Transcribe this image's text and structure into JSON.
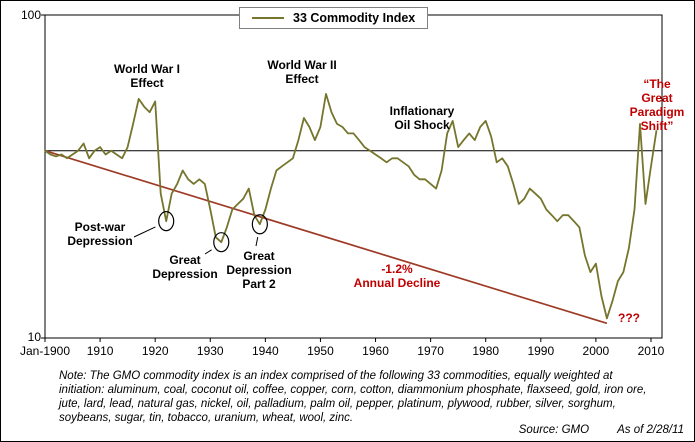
{
  "chart_data": {
    "type": "line",
    "title": "33 Commodity Index (GMO)",
    "x_axis": {
      "range": [
        1900,
        2012
      ],
      "ticks": [
        {
          "year": 1900,
          "label": "Jan-1900"
        },
        {
          "year": 1910,
          "label": "1910"
        },
        {
          "year": 1920,
          "label": "1920"
        },
        {
          "year": 1930,
          "label": "1930"
        },
        {
          "year": 1940,
          "label": "1940"
        },
        {
          "year": 1950,
          "label": "1950"
        },
        {
          "year": 1960,
          "label": "1960"
        },
        {
          "year": 1970,
          "label": "1970"
        },
        {
          "year": 1980,
          "label": "1980"
        },
        {
          "year": 1990,
          "label": "1990"
        },
        {
          "year": 2000,
          "label": "2000"
        },
        {
          "year": 2010,
          "label": "2010"
        }
      ]
    },
    "y_axis": {
      "scale": "log",
      "range": [
        10,
        100
      ],
      "ticks": [
        {
          "value": 100,
          "label": "100"
        },
        {
          "value": 10,
          "label": "10"
        }
      ]
    },
    "series": [
      {
        "name": "33 Commodity Index",
        "color": "#75752d",
        "x": [
          1900,
          1901,
          1902,
          1903,
          1904,
          1905,
          1906,
          1907,
          1908,
          1909,
          1910,
          1911,
          1912,
          1913,
          1914,
          1915,
          1916,
          1917,
          1918,
          1919,
          1920,
          1921,
          1922,
          1923,
          1924,
          1925,
          1926,
          1927,
          1928,
          1929,
          1930,
          1931,
          1932,
          1933,
          1934,
          1935,
          1936,
          1937,
          1938,
          1939,
          1940,
          1941,
          1942,
          1943,
          1944,
          1945,
          1946,
          1947,
          1948,
          1949,
          1950,
          1951,
          1952,
          1953,
          1954,
          1955,
          1956,
          1957,
          1958,
          1959,
          1960,
          1961,
          1962,
          1963,
          1964,
          1965,
          1966,
          1967,
          1968,
          1969,
          1970,
          1971,
          1972,
          1973,
          1974,
          1975,
          1976,
          1977,
          1978,
          1979,
          1980,
          1981,
          1982,
          1983,
          1984,
          1985,
          1986,
          1987,
          1988,
          1989,
          1990,
          1991,
          1992,
          1993,
          1994,
          1995,
          1996,
          1997,
          1998,
          1999,
          2000,
          2001,
          2002,
          2003,
          2004,
          2005,
          2006,
          2007,
          2008,
          2009,
          2010,
          2011
        ],
        "values": [
          38,
          37,
          36.5,
          37,
          36,
          37,
          38,
          40,
          36,
          38,
          39,
          37,
          38,
          37,
          36,
          39,
          46,
          55,
          52,
          50,
          54,
          28,
          23,
          28,
          30,
          33,
          31,
          30,
          31,
          30,
          25,
          20.5,
          19.8,
          22,
          25,
          26,
          27,
          29,
          24,
          22.5,
          25,
          29,
          33,
          34,
          35,
          36,
          41,
          48,
          45,
          41,
          45,
          57,
          50,
          46,
          45,
          43,
          43,
          41,
          39,
          38,
          37,
          36,
          35,
          36,
          36,
          35,
          34,
          32,
          31,
          31,
          30,
          29,
          33,
          43,
          47,
          39,
          41,
          43,
          41,
          45,
          47,
          42,
          35,
          36,
          34,
          30,
          26,
          27,
          29,
          28,
          27,
          25,
          24,
          23,
          24,
          24,
          23,
          22,
          18,
          16,
          17,
          13.5,
          11.5,
          13,
          15,
          16,
          19,
          25,
          46,
          26,
          34,
          44
        ]
      }
    ],
    "trend_line": {
      "from_year": 1900,
      "from_value": 38,
      "to_year": 2002,
      "to_value": 11.1,
      "annual_decline_pct": -1.2,
      "color": "#9e3b26"
    },
    "reference_line": {
      "value": 38,
      "color": "#000000"
    },
    "highlights": [
      {
        "year": 1922,
        "value": 23,
        "label": "Post-war Depression low"
      },
      {
        "year": 1932,
        "value": 19.8,
        "label": "Great Depression low"
      },
      {
        "year": 1939,
        "value": 22.5,
        "label": "Great Depression Part 2 low"
      }
    ],
    "legend_position": "top-center",
    "grid": false
  },
  "legend": {
    "label": "33 Commodity Index",
    "line_color": "#75752d"
  },
  "annotations": {
    "ww1": "World War I\nEffect",
    "ww2": "World War II\nEffect",
    "oil_shock": "Inflationary\nOil Shock",
    "paradigm": "“The\nGreat\nParadigm\nShift”",
    "postwar": "Post-war\nDepression",
    "great_depression": "Great\nDepression",
    "great_depression_2": "Great\nDepression\nPart 2",
    "annual_decline": "-1.2%\nAnnual Decline",
    "question_marks": "???"
  },
  "note": "Note: The GMO commodity index is an index comprised of the following 33 commodities, equally weighted at initiation:  aluminum, coal, coconut oil, coffee, copper, corn, cotton, diammonium phosphate, flaxseed, gold, iron ore, jute, lard, lead, natural gas, nickel, oil, palladium, palm oil, pepper, platinum, plywood, rubber, silver, sorghum, soybeans, sugar, tin, tobacco, uranium, wheat, wool, zinc.",
  "source": {
    "source_label": "Source:  GMO",
    "as_of": "As of 2/28/11"
  },
  "colors": {
    "line": "#75752d",
    "trend": "#9e3b26",
    "red_text": "#c00000",
    "axis": "#000000"
  }
}
